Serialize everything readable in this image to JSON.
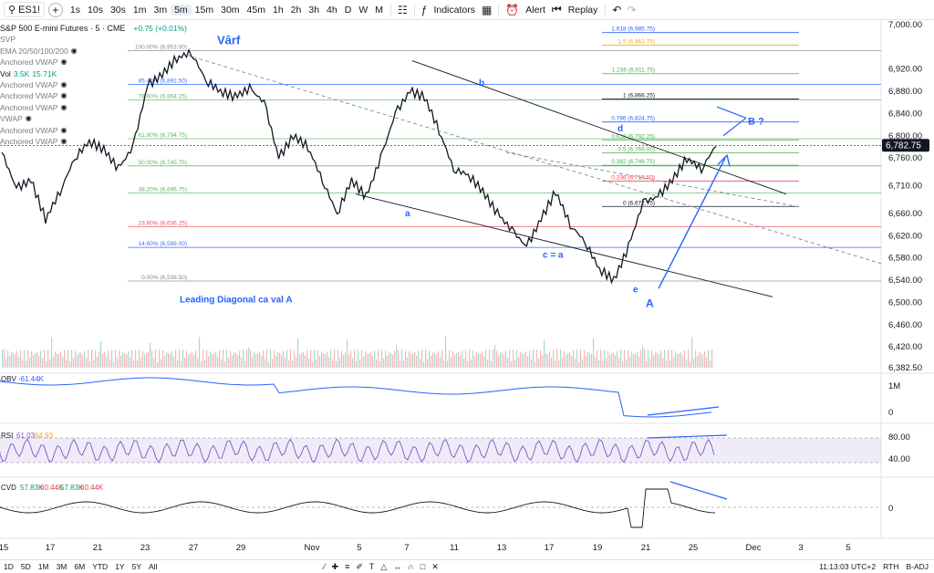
{
  "toolbar": {
    "symbol": "ES1!",
    "intervals": [
      "1s",
      "10s",
      "30s",
      "1m",
      "3m",
      "5m",
      "15m",
      "30m",
      "45m",
      "1h",
      "2h",
      "3h",
      "4h",
      "D",
      "W",
      "M"
    ],
    "active_interval": "5m",
    "indicators_label": "Indicators",
    "alert_label": "Alert",
    "replay_label": "Replay"
  },
  "legend": {
    "title": "S&P 500 E-mini Futures · 5 · CME",
    "change": "+0.75 (+0.01%)",
    "items": [
      "SVP",
      "EMA 20/50/100/200",
      "Anchored VWAP",
      "Vol",
      "Anchored VWAP",
      "Anchored VWAP",
      "Anchored VWAP",
      "VWAP",
      "Anchored VWAP",
      "Anchored VWAP"
    ],
    "vol_values": [
      "3.5K",
      "15.71K"
    ]
  },
  "chart_data": [
    {
      "type": "line",
      "title": "S&P 500 E-mini Futures · 5 · CME",
      "x_ticks": [
        "15",
        "17",
        "21",
        "23",
        "27",
        "29",
        "Nov",
        "5",
        "7",
        "11",
        "13",
        "17",
        "19",
        "21",
        "25",
        "Dec",
        "3",
        "5"
      ],
      "y_ticks": [
        "7,000.00",
        "6,920.00",
        "6,880.00",
        "6,840.00",
        "6,800.00",
        "6,760.00",
        "6,710.00",
        "6,660.00",
        "6,620.00",
        "6,580.00",
        "6,540.00",
        "6,500.00",
        "6,460.00",
        "6,420.00",
        "6,382.50"
      ],
      "ylim": [
        6382.5,
        7000
      ],
      "last_price": "6,782.75",
      "series": [
        {
          "values": [
            6770,
            6705,
            6720,
            6650,
            6700,
            6760,
            6790,
            6775,
            6740,
            6780,
            6890,
            6910,
            6940,
            6950,
            6900,
            6880,
            6870,
            6885,
            6860,
            6760,
            6800,
            6780,
            6720,
            6660,
            6720,
            6690,
            6760,
            6840,
            6880,
            6870,
            6810,
            6740,
            6730,
            6700,
            6660,
            6630,
            6600,
            6650,
            6700,
            6640,
            6610,
            6560,
            6540,
            6600,
            6680,
            6690,
            6720,
            6760,
            6740,
            6783
          ]
        }
      ],
      "fib_left": [
        {
          "label": "100.00% (6,953.00)",
          "value": 6953
        },
        {
          "label": "85.40% (6,892.50)",
          "value": 6892.5
        },
        {
          "label": "78.60% (6,864.25)",
          "value": 6864.25
        },
        {
          "label": "61.80% (6,794.75)",
          "value": 6794.75
        },
        {
          "label": "50.00% (6,745.75)",
          "value": 6745.75
        },
        {
          "label": "38.20% (6,696.75)",
          "value": 6696.75
        },
        {
          "label": "23.60% (6,636.25)",
          "value": 6636.25
        },
        {
          "label": "14.60% (6,599.00)",
          "value": 6599
        },
        {
          "label": "0.00% (6,538.50)",
          "value": 6538.5
        }
      ],
      "fib_right": [
        {
          "label": "1.618 (6,985.75)",
          "value": 6985.75
        },
        {
          "label": "1.5 (6,962.75)",
          "value": 6962.75
        },
        {
          "label": "1.236 (6,911.75)",
          "value": 6911.75
        },
        {
          "label": "1 (6,866.25)",
          "value": 6866.25
        },
        {
          "label": "0.786 (6,824.75)",
          "value": 6824.75
        },
        {
          "label": "0.618 (6,792.25)",
          "value": 6792.25
        },
        {
          "label": "0.5 (6,769.00)",
          "value": 6769
        },
        {
          "label": "0.382 (6,746.75)",
          "value": 6746.75
        },
        {
          "label": "0.236 (6,718.50)",
          "value": 6718.5
        },
        {
          "label": "0 (6,672.75)",
          "value": 6672.75
        }
      ],
      "annotations": [
        "Vârf",
        "b",
        "d",
        "B ?",
        "a",
        "c = a",
        "e",
        "A",
        "Leading Diagonal ca val A"
      ]
    },
    {
      "type": "line",
      "title": "OBV",
      "value_label": "-61.44K",
      "y_ticks": [
        "1M",
        "0"
      ]
    },
    {
      "type": "line",
      "title": "RSI",
      "value_labels": [
        "61.03",
        "64.93"
      ],
      "y_ticks": [
        "80.00",
        "40.00"
      ]
    },
    {
      "type": "line",
      "title": "CVD",
      "value_labels": [
        "57.83K",
        "60.44K",
        "57.83K",
        "60.44K"
      ],
      "y_ticks": [
        "0"
      ]
    }
  ],
  "bottombar": {
    "ranges": [
      "1D",
      "5D",
      "1M",
      "3M",
      "6M",
      "YTD",
      "1Y",
      "5Y",
      "All"
    ],
    "time": "11:13:03 UTC+2",
    "session": "RTH",
    "adj": "B-ADJ"
  },
  "colors": {
    "annotation": "#2962ff",
    "price_line": "#131722",
    "fib_red": "#f23645",
    "fib_green": "#4caf50",
    "fib_blue": "#2962ff"
  }
}
